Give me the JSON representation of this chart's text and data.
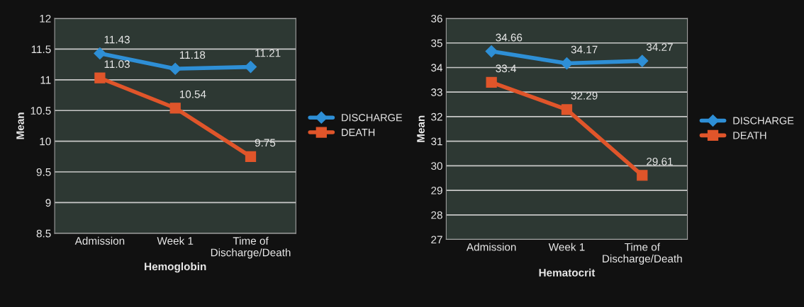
{
  "chart_data": [
    {
      "type": "line",
      "xlabel": "Hemoglobin",
      "ylabel": "Mean",
      "categories": [
        "Admission",
        "Week 1",
        "Time of\nDischarge/Death"
      ],
      "series": [
        {
          "name": "DISCHARGE",
          "color": "#2e8fd6",
          "values": [
            11.43,
            11.18,
            11.21
          ],
          "marker": "diamond"
        },
        {
          "name": "DEATH",
          "color": "#e0552a",
          "values": [
            11.03,
            10.54,
            9.75
          ],
          "marker": "square"
        }
      ],
      "ylim": [
        8.5,
        12
      ],
      "yticks": [
        8.5,
        9,
        9.5,
        10,
        10.5,
        11,
        11.5,
        12
      ],
      "grid": "y",
      "legend": "right",
      "data_labels": true
    },
    {
      "type": "line",
      "xlabel": "Hematocrit",
      "ylabel": "Mean",
      "categories": [
        "Admission",
        "Week 1",
        "Time of\nDischarge/Death"
      ],
      "series": [
        {
          "name": "DISCHARGE",
          "color": "#2e8fd6",
          "values": [
            34.66,
            34.17,
            34.27
          ],
          "marker": "diamond"
        },
        {
          "name": "DEATH",
          "color": "#e0552a",
          "values": [
            33.4,
            32.29,
            29.61
          ],
          "marker": "square"
        }
      ],
      "ylim": [
        27,
        36
      ],
      "yticks": [
        27,
        28,
        29,
        30,
        31,
        32,
        33,
        34,
        35,
        36
      ],
      "grid": "y",
      "legend": "right",
      "data_labels": true
    }
  ]
}
